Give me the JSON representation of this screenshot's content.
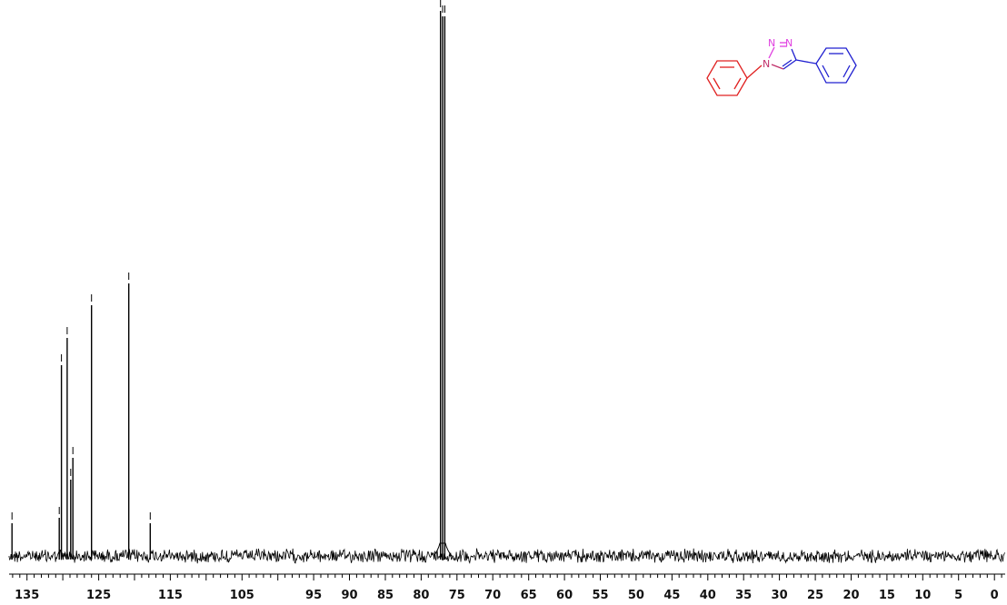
{
  "chart_data": {
    "type": "line",
    "title": "",
    "xlabel": "",
    "ylabel": "",
    "x_reversed": true,
    "xlim": [
      137.5,
      -1.5
    ],
    "x_ticks": [
      135,
      125,
      115,
      105,
      95,
      90,
      85,
      80,
      75,
      70,
      65,
      60,
      55,
      50,
      45,
      40,
      35,
      30,
      25,
      20,
      15,
      10,
      5,
      0
    ],
    "grid": false,
    "series": [
      {
        "peaks": [
          {
            "ppm": 137.1,
            "intensity": 0.06
          },
          {
            "ppm": 130.5,
            "intensity": 0.07
          },
          {
            "ppm": 130.2,
            "intensity": 0.35
          },
          {
            "ppm": 129.4,
            "intensity": 0.4
          },
          {
            "ppm": 128.9,
            "intensity": 0.14
          },
          {
            "ppm": 128.6,
            "intensity": 0.18
          },
          {
            "ppm": 126.0,
            "intensity": 0.46
          },
          {
            "ppm": 120.8,
            "intensity": 0.5
          },
          {
            "ppm": 117.8,
            "intensity": 0.06
          },
          {
            "ppm": 77.3,
            "intensity": 1.0
          },
          {
            "ppm": 77.0,
            "intensity": 0.99
          },
          {
            "ppm": 76.7,
            "intensity": 0.99
          }
        ]
      }
    ]
  },
  "structure": {
    "atom_labels": [
      "N",
      "N",
      "N"
    ],
    "colors": {
      "triazole_n": "#e040e0",
      "n1_link": "#c0306a",
      "left_phenyl": "#e02020",
      "right_phenyl": "#2020d0",
      "spectrum": "#000000"
    }
  }
}
